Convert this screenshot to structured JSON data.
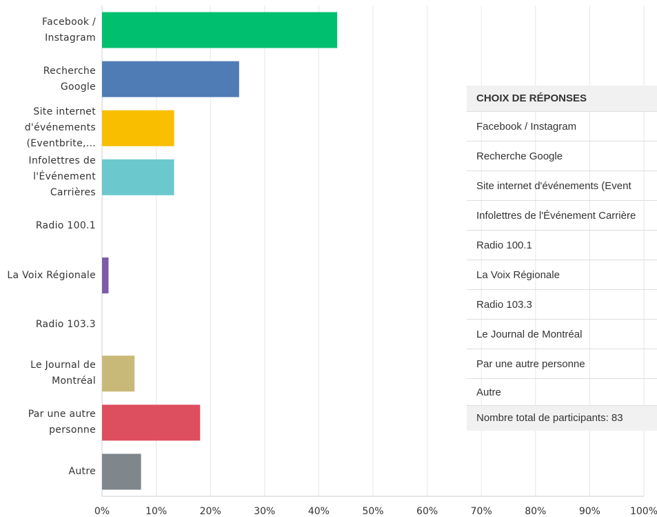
{
  "chart_data": {
    "type": "barh",
    "categories": [
      "Facebook / Instagram",
      "Recherche Google",
      "Site internet d'événements (Eventbrite,...",
      "Infolettres de l'Événement Carrières",
      "Radio 100.1",
      "La Voix Régionale",
      "Radio 103.3",
      "Le Journal de Montréal",
      "Par une autre personne",
      "Autre"
    ],
    "values": [
      43.4,
      25.3,
      13.3,
      13.3,
      0,
      1.2,
      0,
      6.0,
      18.1,
      7.2
    ],
    "colors": [
      "#00bf6f",
      "#507cb6",
      "#f9be00",
      "#6bc8cd",
      null,
      "#7d5ba6",
      null,
      "#c9b978",
      "#dd4e5e",
      "#7f868c"
    ],
    "xlim": [
      0,
      100
    ],
    "xticks": [
      {
        "value": 0,
        "label": "0%"
      },
      {
        "value": 10,
        "label": "10%"
      },
      {
        "value": 20,
        "label": "20%"
      },
      {
        "value": 30,
        "label": "30%"
      },
      {
        "value": 40,
        "label": "40%"
      },
      {
        "value": 50,
        "label": "50%"
      },
      {
        "value": 60,
        "label": "60%"
      },
      {
        "value": 70,
        "label": "70%"
      },
      {
        "value": 80,
        "label": "80%"
      },
      {
        "value": 90,
        "label": "90%"
      },
      {
        "value": 100,
        "label": "100%"
      }
    ],
    "grid": true
  },
  "table": {
    "header": "CHOIX DE RÉPONSES",
    "rows": [
      "Facebook / Instagram",
      "Recherche Google",
      "Site internet d'événements (Event",
      "Infolettres de l'Événement Carrière",
      "Radio 100.1",
      "La Voix Régionale",
      "Radio 103.3",
      "Le Journal de Montréal",
      "Par une autre personne",
      "Autre"
    ],
    "total": "Nombre total de participants: 83"
  }
}
